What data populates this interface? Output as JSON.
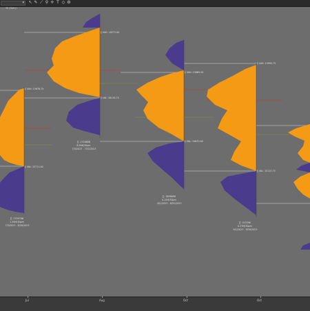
{
  "toolbar": {
    "symbol_value": "",
    "icons": [
      "cursor-icon",
      "pencil-icon",
      "measure-icon",
      "zoom-icon",
      "crosshair-icon",
      "text-icon",
      "shapes-icon",
      "settings-icon"
    ]
  },
  "subtitle": "..., 30 (Daily)",
  "axis": {
    "labels": [
      "Jul",
      "Aug",
      "Oct",
      "Oct"
    ]
  },
  "profiles": [
    {
      "vah_label": "§ VAH: 15678.75",
      "val_label": "§ VAL: 15711.00",
      "poc_label": "",
      "summary": [
        "∑: 1709706",
        "1.35M/30pm",
        "7/3/2023 - 6/30/2023"
      ]
    },
    {
      "vah_label": "§ VAH: 16272.00",
      "val_label": "§ VAL: 16118.75",
      "poc_label": "",
      "summary": [
        "∑: 1718696",
        "8.99K/30pm",
        "7/3/2023 - 7/31/2023"
      ]
    },
    {
      "vah_label": "§ VAH: 15869.50",
      "val_label": "§ VAL: 15633.00",
      "poc_label": "",
      "summary": [
        "∑: 1698698",
        "0.12M/30pm",
        "8/1/2023 - 8/31/2023"
      ]
    },
    {
      "vah_label": "§ VAH: 15995.75",
      "val_label": "§ VAL: 15115.75",
      "poc_label": "",
      "summary": [
        "∑: 15339K",
        "0.37M/30pm",
        "9/1/2023 - 9/30/2023"
      ]
    }
  ],
  "colors": {
    "background": "#6d6d6d",
    "volume_up": "#f59a14",
    "volume_down": "#4a3b8c",
    "value_line": "#d9d9d9",
    "poc_line": "#d9331f",
    "mid_line": "#8a8f3a"
  }
}
